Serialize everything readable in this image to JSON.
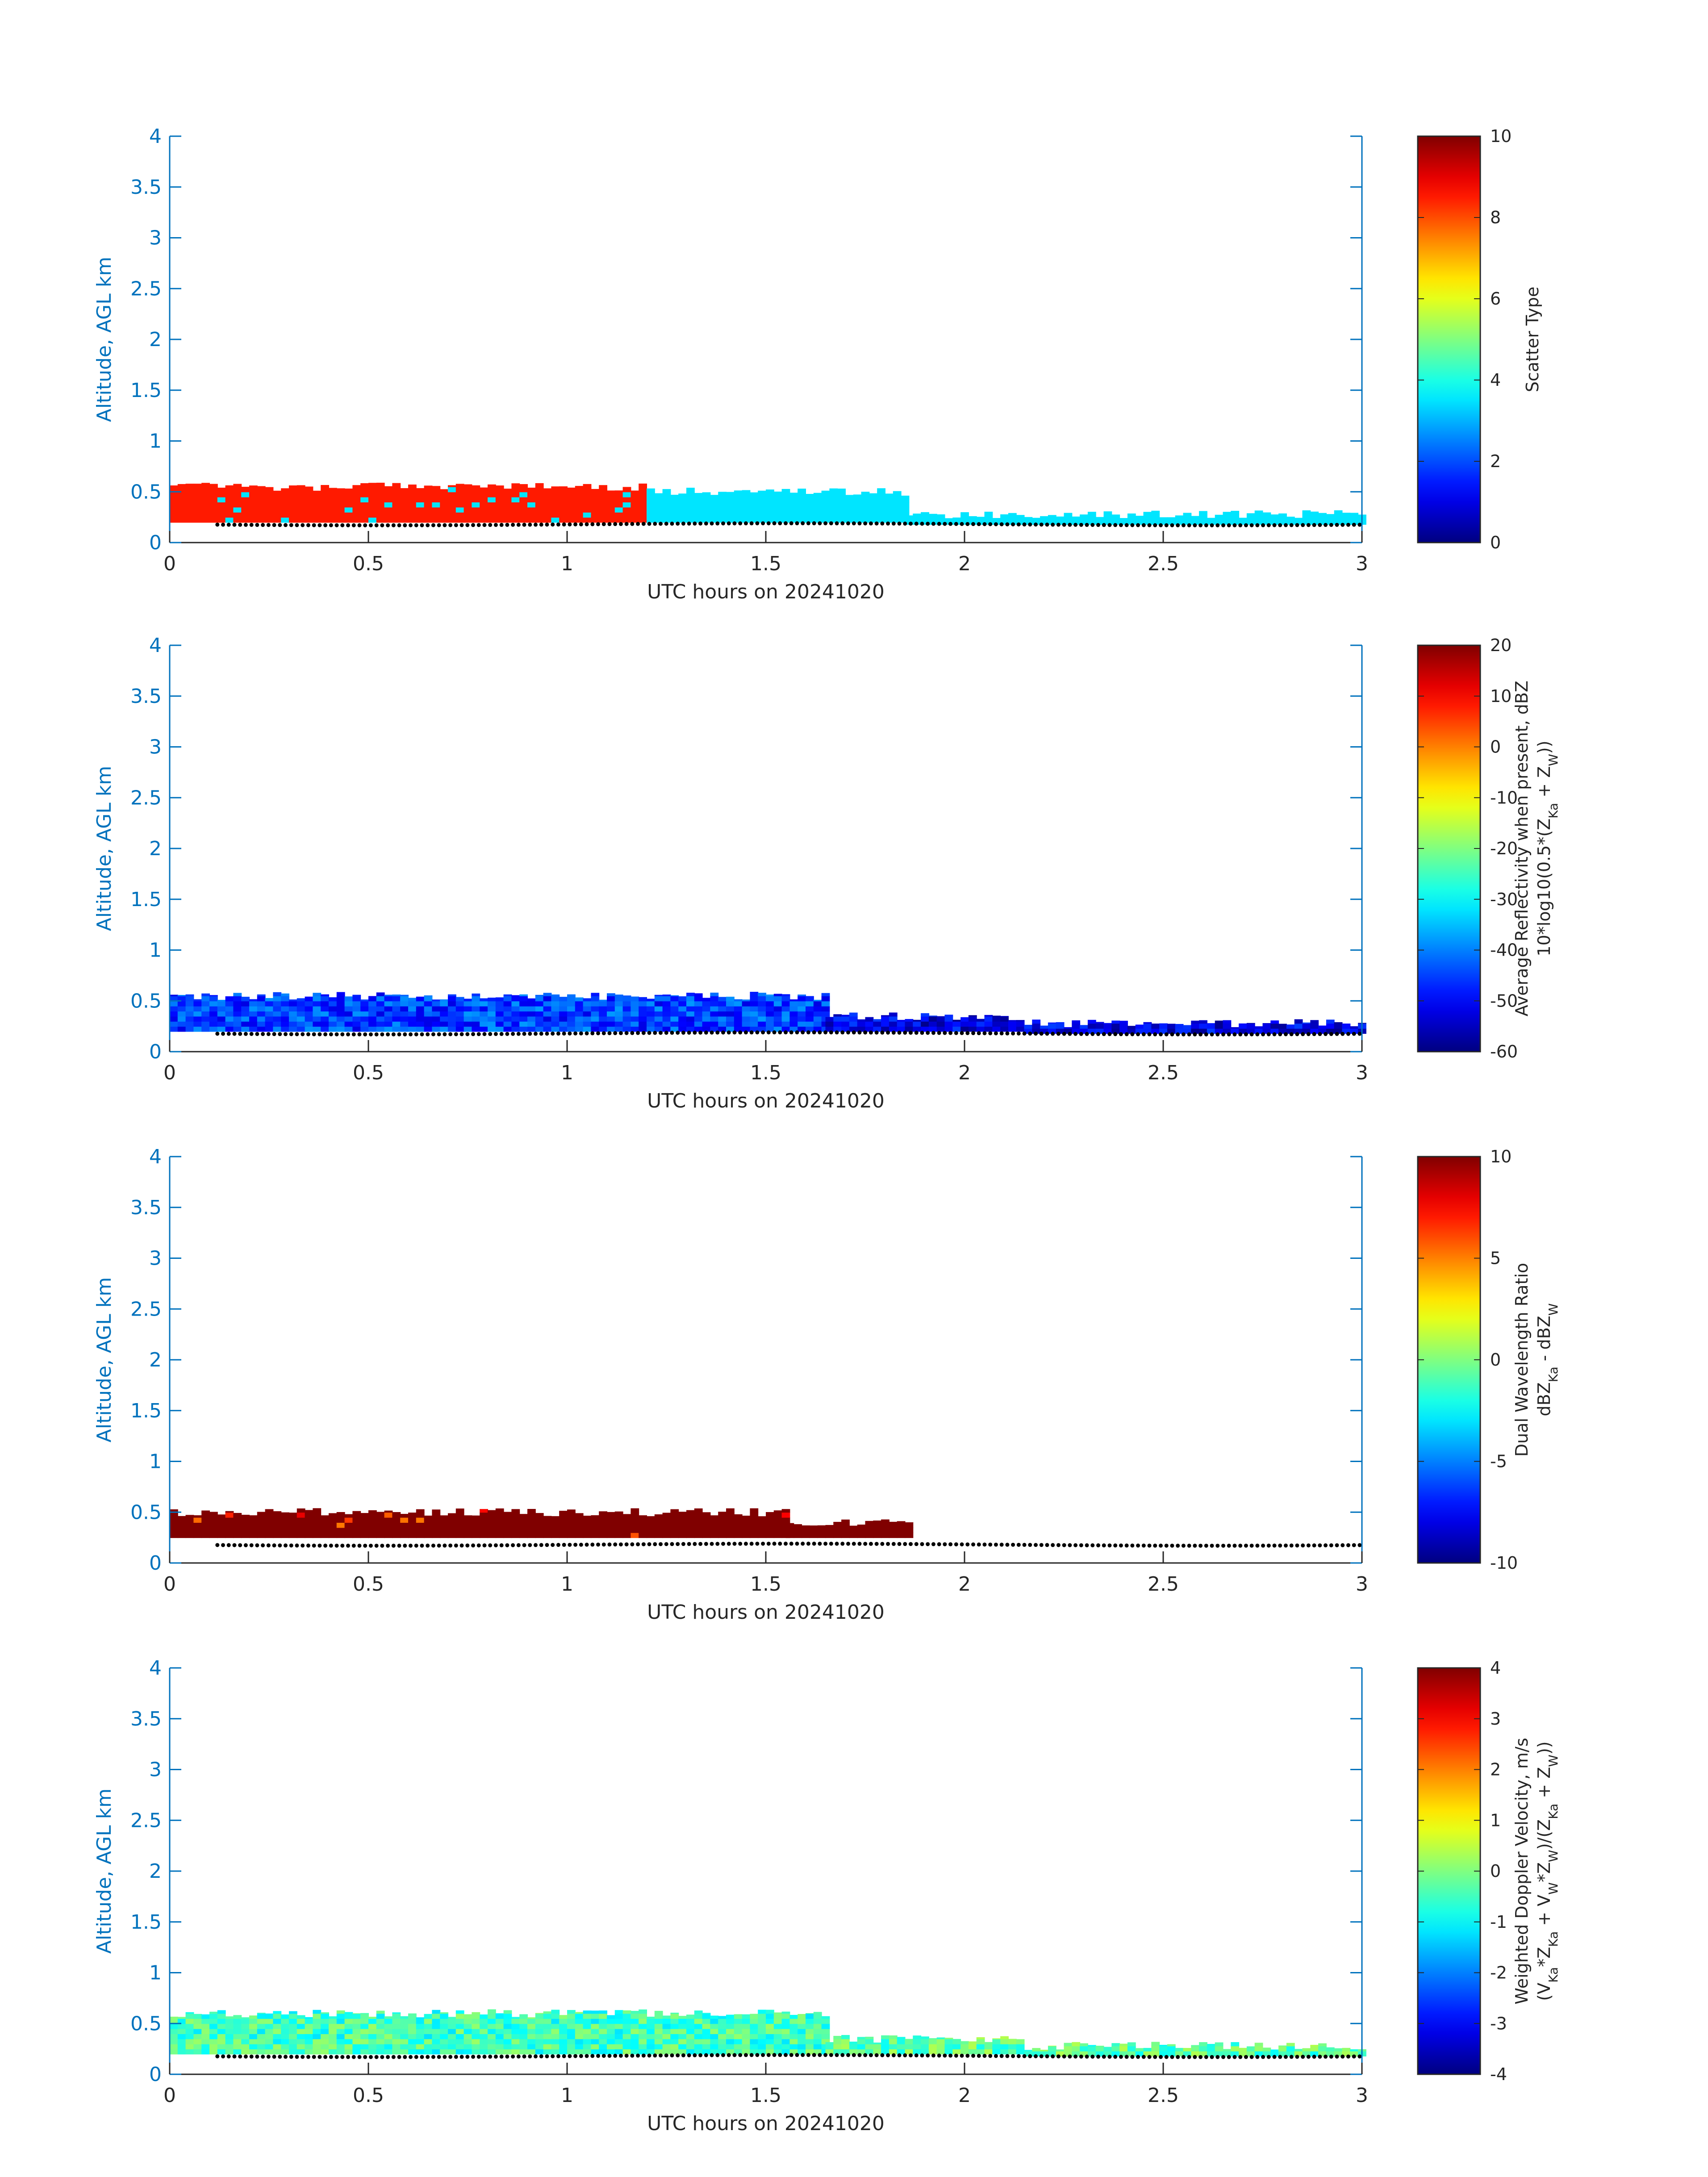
{
  "chart_data": [
    {
      "type": "heatmap",
      "xlabel": "UTC hours on 20241020",
      "ylabel": "Altitude, AGL km",
      "xlim": [
        0,
        3
      ],
      "ylim": [
        0,
        4
      ],
      "xticks": [
        "0",
        "0.5",
        "1",
        "1.5",
        "2",
        "2.5",
        "3"
      ],
      "yticks": [
        "0",
        "0.5",
        "1",
        "1.5",
        "2",
        "2.5",
        "3",
        "3.5",
        "4"
      ],
      "colormap": "jet",
      "colorbar": {
        "label_lines": [
          "Scatter Type"
        ],
        "range": [
          0,
          10
        ],
        "ticks": [
          "0",
          "2",
          "4",
          "6",
          "8",
          "10"
        ]
      },
      "layers": [
        {
          "x_range": [
            0,
            1.2
          ],
          "cloud_base_km": 0.2,
          "cloud_top_km": 0.55,
          "value": 8.5
        },
        {
          "x_range": [
            1.2,
            1.85
          ],
          "cloud_base_km": 0.2,
          "cloud_top_km": 0.5,
          "value": 3.5
        },
        {
          "x_range": [
            1.85,
            3.0
          ],
          "cloud_base_km": 0.18,
          "cloud_top_km": 0.28,
          "value": 3.5
        }
      ],
      "surface_dots_km": 0.18
    },
    {
      "type": "heatmap",
      "xlabel": "UTC hours on 20241020",
      "ylabel": "Altitude, AGL km",
      "xlim": [
        0,
        3
      ],
      "ylim": [
        0,
        4
      ],
      "xticks": [
        "0",
        "0.5",
        "1",
        "1.5",
        "2",
        "2.5",
        "3"
      ],
      "yticks": [
        "0",
        "0.5",
        "1",
        "1.5",
        "2",
        "2.5",
        "3",
        "3.5",
        "4"
      ],
      "colormap": "jet",
      "colorbar": {
        "label_lines": [
          "Average Reflectivity when present, dBZ",
          "10*log10(0.5*(Z",
          "Ka",
          " + Z",
          "W",
          "))"
        ],
        "range": [
          -60,
          20
        ],
        "ticks": [
          "-60",
          "-50",
          "-40",
          "-30",
          "-20",
          "-10",
          "0",
          "10",
          "20"
        ]
      },
      "layers": [
        {
          "x_range": [
            0,
            1.65
          ],
          "cloud_base_km": 0.2,
          "cloud_top_km": 0.55,
          "value": -45
        },
        {
          "x_range": [
            1.65,
            2.15
          ],
          "cloud_base_km": 0.2,
          "cloud_top_km": 0.35,
          "value": -52
        },
        {
          "x_range": [
            2.15,
            3.0
          ],
          "cloud_base_km": 0.18,
          "cloud_top_km": 0.28,
          "value": -52
        }
      ],
      "surface_dots_km": 0.18
    },
    {
      "type": "heatmap",
      "xlabel": "UTC hours on 20241020",
      "ylabel": "Altitude, AGL km",
      "xlim": [
        0,
        3
      ],
      "ylim": [
        0,
        4
      ],
      "xticks": [
        "0",
        "0.5",
        "1",
        "1.5",
        "2",
        "2.5",
        "3"
      ],
      "yticks": [
        "0",
        "0.5",
        "1",
        "1.5",
        "2",
        "2.5",
        "3",
        "3.5",
        "4"
      ],
      "colormap": "jet",
      "colorbar": {
        "label_lines": [
          "Dual Wavelength Ratio",
          "dBZ",
          "Ka",
          " - dBZ",
          "W",
          ""
        ],
        "range": [
          -10,
          10
        ],
        "ticks": [
          "-10",
          "-5",
          "0",
          "5",
          "10"
        ]
      },
      "layers": [
        {
          "x_range": [
            0,
            1.55
          ],
          "cloud_base_km": 0.25,
          "cloud_top_km": 0.5,
          "value": 10
        },
        {
          "x_range": [
            1.55,
            1.87
          ],
          "cloud_base_km": 0.25,
          "cloud_top_km": 0.4,
          "value": 10
        }
      ],
      "surface_dots_km": 0.18
    },
    {
      "type": "heatmap",
      "xlabel": "UTC hours on 20241020",
      "ylabel": "Altitude, AGL km",
      "xlim": [
        0,
        3
      ],
      "ylim": [
        0,
        4
      ],
      "xticks": [
        "0",
        "0.5",
        "1",
        "1.5",
        "2",
        "2.5",
        "3"
      ],
      "yticks": [
        "0",
        "0.5",
        "1",
        "1.5",
        "2",
        "2.5",
        "3",
        "3.5",
        "4"
      ],
      "colormap": "jet",
      "colorbar": {
        "label_lines": [
          "Weighted Doppler Velocity, m/s",
          "(V",
          "Ka",
          "*Z",
          "Ka",
          " + V",
          "W",
          "*Z",
          "W",
          ")/(Z",
          "Ka",
          " + Z",
          "W",
          "))"
        ],
        "range": [
          -4,
          4
        ],
        "ticks": [
          "-4",
          "-3",
          "-2",
          "-1",
          "0",
          "1",
          "2",
          "3",
          "4"
        ]
      },
      "layers": [
        {
          "x_range": [
            0,
            1.65
          ],
          "cloud_base_km": 0.2,
          "cloud_top_km": 0.6,
          "value": -0.5
        },
        {
          "x_range": [
            1.65,
            2.15
          ],
          "cloud_base_km": 0.2,
          "cloud_top_km": 0.35,
          "value": -0.3
        },
        {
          "x_range": [
            2.15,
            3.0
          ],
          "cloud_base_km": 0.18,
          "cloud_top_km": 0.28,
          "value": -0.3
        }
      ],
      "surface_dots_km": 0.18
    }
  ]
}
